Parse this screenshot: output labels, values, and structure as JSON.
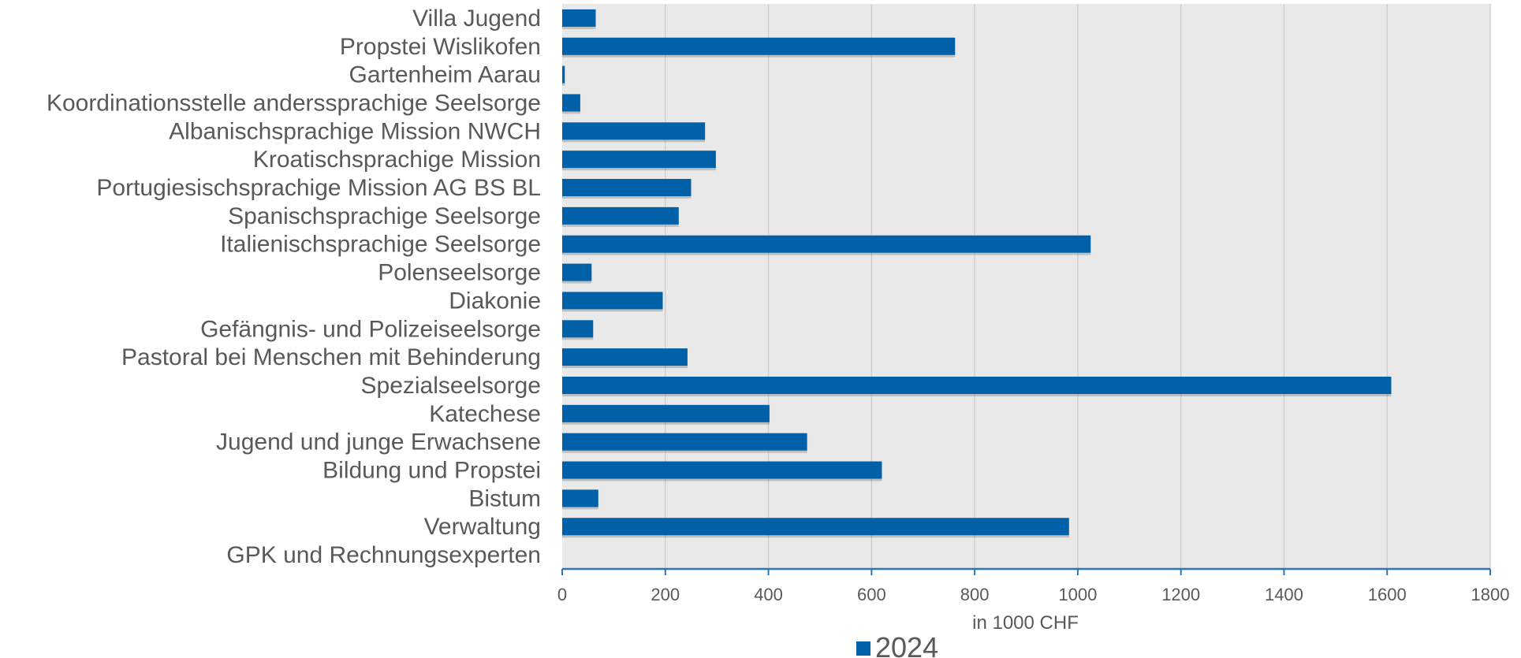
{
  "chart_data": {
    "type": "bar",
    "orientation": "horizontal",
    "categories": [
      "Villa Jugend",
      "Propstei Wislikofen",
      "Gartenheim Aarau",
      "Koordinationsstelle anderssprachige Seelsorge",
      "Albanischsprachige Mission NWCH",
      "Kroatischsprachige Mission",
      "Portugiesischsprachige Mission AG BS BL",
      "Spanischsprachige Seelsorge",
      "Italienischsprachige Seelsorge",
      "Polenseelsorge ",
      "Diakonie",
      "Gefängnis- und Polizeiseelsorge",
      "Pastoral bei Menschen mit Behinderung",
      "Spezialseelsorge",
      "Katechese",
      "Jugend und junge Erwachsene",
      "Bildung und Propstei",
      "Bistum ",
      "Verwaltung",
      "GPK und Rechnungsexperten"
    ],
    "series": [
      {
        "name": "2024",
        "color": "#0060A8",
        "values": [
          65,
          762,
          5,
          35,
          277,
          298,
          250,
          226,
          1025,
          57,
          195,
          60,
          243,
          1608,
          402,
          475,
          620,
          70,
          983,
          0
        ]
      }
    ],
    "xlabel": "in 1000 CHF",
    "ylabel": "",
    "xlim": [
      0,
      1800
    ],
    "xticks": [
      "0",
      "200",
      "400",
      "600",
      "800",
      "1000",
      "1200",
      "1400",
      "1600",
      "1800"
    ],
    "grid": "vertical",
    "legend_position": "bottom",
    "plot_background": "#E9E9E9",
    "axis_color": "#2E75B6"
  }
}
